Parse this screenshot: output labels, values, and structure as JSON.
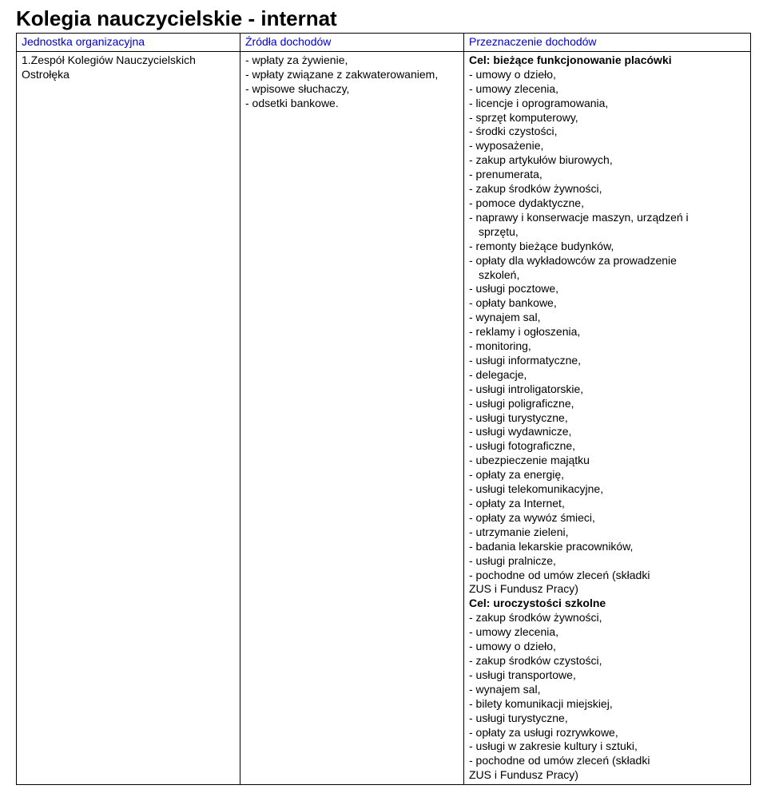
{
  "title": "Kolegia nauczycielskie - internat",
  "headers": {
    "col1": "Jednostka organizacyjna",
    "col2": "Źródła dochodów",
    "col3": "Przeznaczenie dochodów"
  },
  "row": {
    "unit": "1.Zespół Kolegiów Nauczycielskich Ostrołęka",
    "sources": [
      "- wpłaty za żywienie,",
      "- wpłaty związane z zakwaterowaniem,",
      "- wpisowe słuchaczy,",
      "- odsetki bankowe."
    ],
    "dest": [
      {
        "text": "Cel: bieżące funkcjonowanie placówki",
        "bold": true
      },
      {
        "text": "- umowy o dzieło,"
      },
      {
        "text": "- umowy zlecenia,"
      },
      {
        "text": "- licencje i oprogramowania,"
      },
      {
        "text": "- sprzęt komputerowy,"
      },
      {
        "text": "- środki czystości,"
      },
      {
        "text": "- wyposażenie,"
      },
      {
        "text": "- zakup artykułów biurowych,"
      },
      {
        "text": "- prenumerata,"
      },
      {
        "text": "- zakup środków żywności,"
      },
      {
        "text": "- pomoce dydaktyczne,"
      },
      {
        "text": "- naprawy i konserwacje maszyn, urządzeń i"
      },
      {
        "text": "sprzętu,",
        "indent": true
      },
      {
        "text": "- remonty bieżące budynków,"
      },
      {
        "text": "- opłaty dla wykładowców za prowadzenie"
      },
      {
        "text": "szkoleń,",
        "indent": true
      },
      {
        "text": "- usługi pocztowe,"
      },
      {
        "text": "- opłaty bankowe,"
      },
      {
        "text": "- wynajem sal,"
      },
      {
        "text": "- reklamy i ogłoszenia,"
      },
      {
        "text": "- monitoring,"
      },
      {
        "text": "- usługi informatyczne,"
      },
      {
        "text": "- delegacje,"
      },
      {
        "text": "- usługi introligatorskie,"
      },
      {
        "text": "- usługi poligraficzne,"
      },
      {
        "text": "- usługi turystyczne,"
      },
      {
        "text": "- usługi wydawnicze,"
      },
      {
        "text": "- usługi fotograficzne,"
      },
      {
        "text": "- ubezpieczenie majątku"
      },
      {
        "text": "- opłaty za energię,"
      },
      {
        "text": "- usługi telekomunikacyjne,"
      },
      {
        "text": "- opłaty za Internet,"
      },
      {
        "text": "- opłaty za wywóz śmieci,"
      },
      {
        "text": "- utrzymanie zieleni,"
      },
      {
        "text": "- badania lekarskie pracowników,"
      },
      {
        "text": "- usługi pralnicze,"
      },
      {
        "text": "- pochodne od umów zleceń (składki"
      },
      {
        "text": "ZUS i Fundusz Pracy)"
      },
      {
        "text": "Cel: uroczystości szkolne",
        "bold": true
      },
      {
        "text": "- zakup środków żywności,"
      },
      {
        "text": "- umowy zlecenia,"
      },
      {
        "text": "- umowy o dzieło,"
      },
      {
        "text": "- zakup środków czystości,"
      },
      {
        "text": "- usługi transportowe,"
      },
      {
        "text": "- wynajem sal,"
      },
      {
        "text": "- bilety komunikacji miejskiej,"
      },
      {
        "text": "- usługi turystyczne,"
      },
      {
        "text": "- opłaty za usługi rozrywkowe,"
      },
      {
        "text": "- usługi w zakresie kultury i sztuki,"
      },
      {
        "text": "- pochodne od umów zleceń (składki"
      },
      {
        "text": "ZUS i Fundusz Pracy)"
      }
    ]
  }
}
